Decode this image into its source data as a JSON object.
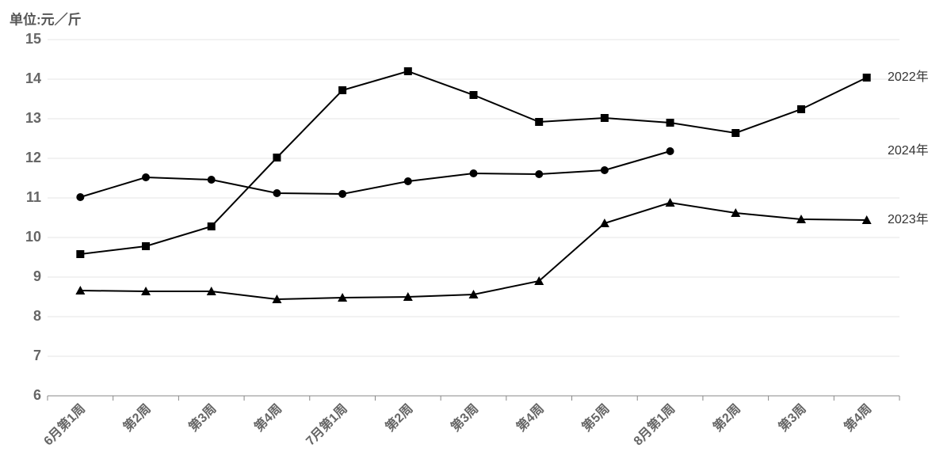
{
  "chart_data": {
    "type": "line",
    "y_label": "单位:元／斤",
    "categories": [
      "6月第1周",
      "第2周",
      "第3周",
      "第4周",
      "7月第1周",
      "第2周",
      "第3周",
      "第4周",
      "第5周",
      "8月第1周",
      "第2周",
      "第3周",
      "第4周"
    ],
    "series": [
      {
        "name": "2022年",
        "color": "#000000",
        "marker": "square",
        "values": [
          9.58,
          9.78,
          10.28,
          12.02,
          13.72,
          14.2,
          13.6,
          12.92,
          13.02,
          12.9,
          12.64,
          13.24,
          14.04
        ]
      },
      {
        "name": "2024年",
        "color": "#000000",
        "marker": "circle",
        "values": [
          11.02,
          11.52,
          11.46,
          11.12,
          11.1,
          11.42,
          11.62,
          11.6,
          11.7,
          12.18,
          null,
          null,
          null
        ]
      },
      {
        "name": "2023年",
        "color": "#000000",
        "marker": "triangle",
        "values": [
          8.66,
          8.64,
          8.64,
          8.44,
          8.48,
          8.5,
          8.56,
          8.9,
          10.36,
          10.88,
          10.62,
          10.46,
          10.44
        ]
      }
    ],
    "ylim": [
      6,
      15
    ],
    "yticks": [
      6,
      7,
      8,
      9,
      10,
      11,
      12,
      13,
      14,
      15
    ],
    "grid": true
  }
}
